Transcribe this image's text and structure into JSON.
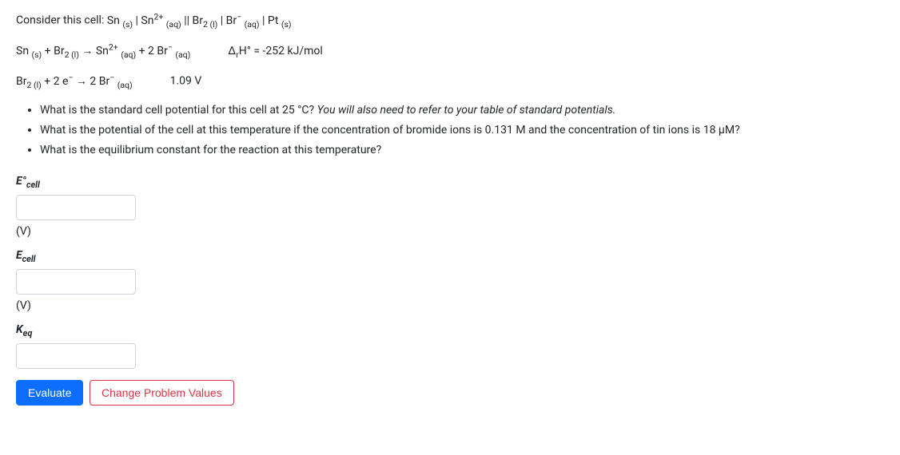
{
  "cell_prompt_prefix": "Consider this cell:  ",
  "cell_notation": "Sn <sub>(s)</sub> | Sn<sup>2+</sup> <sub>(aq)</sub> || Br<sub>2 (l)</sub> | Br<sup>−</sup> <sub>(aq)</sub> | Pt <sub>(s)</sub>",
  "rxn1": "Sn <sub>(s)</sub> + Br<sub>2 (l)</sub> → Sn<sup>2+</sup> <sub>(aq)</sub> +  2 Br<sup>−</sup> <sub>(aq)</sub>",
  "rxn1_dh": "Δ<sub>r</sub>H° = -252 kJ/mol",
  "rxn2": "Br<sub>2 (l)</sub> + 2 e<sup>−</sup> → 2 Br<sup>−</sup> <sub>(aq)</sub>",
  "rxn2_val": "1.09 V",
  "q1a": "What is the standard cell potential for this cell at 25 °C?  ",
  "q1b": "You will also need to refer to your table of standard potentials.",
  "q2": "What is the potential of the cell at this temperature if the concentration of bromide ions is 0.131 M and the concentration of tin ions is 18 μM?",
  "q3": "What is the equilibrium constant for the reaction at this temperature?",
  "label_e0cell": "E°<sub>cell</sub>",
  "label_ecell": "E<sub>cell</sub>",
  "label_keq": "K<sub>eq</sub>",
  "unit_v": "(V)",
  "btn_evaluate": "Evaluate",
  "btn_change": "Change Problem Values"
}
